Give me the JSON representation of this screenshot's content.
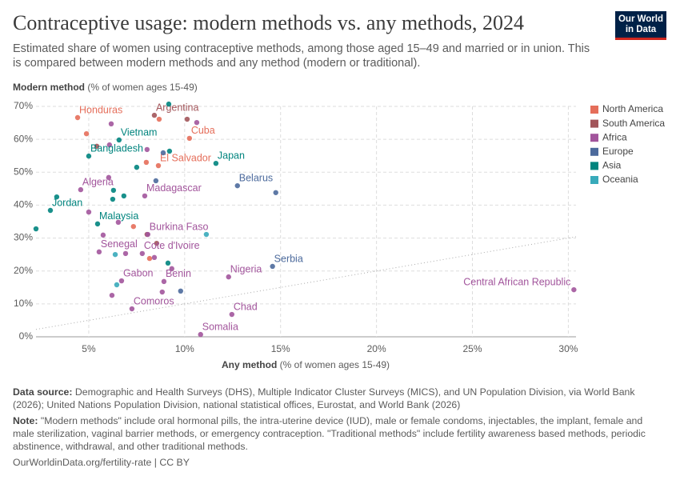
{
  "header": {
    "title": "Contraceptive usage: modern methods vs. any methods, 2024",
    "subtitle": "Estimated share of women using contraceptive methods, among those aged 15–49 and married or in union. This is compared between modern methods and any method (modern or traditional).",
    "logo": "Our World in Data"
  },
  "chart_data": {
    "type": "scatter",
    "ylabel": "Modern method",
    "ylabel_unit": "(% of women ages 15-49)",
    "xlabel": "Any method",
    "xlabel_unit": "(% of women ages 15-49)",
    "xlim": [
      2.25,
      30.4
    ],
    "ylim": [
      0,
      70
    ],
    "xticks": [
      {
        "value": 5,
        "label": "5%"
      },
      {
        "value": 10,
        "label": "10%"
      },
      {
        "value": 15,
        "label": "15%"
      },
      {
        "value": 20,
        "label": "20%"
      },
      {
        "value": 25,
        "label": "25%"
      },
      {
        "value": 30,
        "label": "30%"
      }
    ],
    "yticks": [
      {
        "value": 0,
        "label": "0%"
      },
      {
        "value": 10,
        "label": "10%"
      },
      {
        "value": 20,
        "label": "20%"
      },
      {
        "value": 30,
        "label": "30%"
      },
      {
        "value": 40,
        "label": "40%"
      },
      {
        "value": 50,
        "label": "50%"
      },
      {
        "value": 60,
        "label": "60%"
      },
      {
        "value": 70,
        "label": "70%"
      }
    ],
    "grid": true,
    "legend": "right",
    "series": [
      {
        "name": "North America",
        "color": "#e56e5a",
        "x": [
          4.42,
          10.25,
          8.63,
          8.0,
          7.33,
          8.17,
          4.88,
          8.67
        ],
        "values": [
          66.6,
          60.3,
          52.0,
          53.0,
          33.5,
          23.8,
          61.7,
          66.1
        ],
        "labels": [
          "Honduras",
          "Cuba",
          "El Salvador",
          null,
          null,
          null,
          null,
          null
        ]
      },
      {
        "name": "South America",
        "color": "#a2555a",
        "x": [
          8.42,
          10.13,
          5.42,
          8.54,
          8.04
        ],
        "values": [
          67.3,
          66.1,
          57.9,
          28.4,
          31.1
        ],
        "labels": [
          "Argentina",
          null,
          null,
          null,
          null
        ]
      },
      {
        "name": "Africa",
        "color": "#a2559c",
        "x": [
          4.58,
          7.92,
          8.08,
          7.79,
          12.29,
          12.46,
          10.83,
          30.29,
          6.71,
          8.92,
          7.25,
          5.54,
          6.17,
          10.63,
          6.08,
          8.04,
          6.04,
          5.0,
          5.75,
          6.54,
          6.92,
          8.42,
          8.83,
          6.21,
          9.33
        ],
        "values": [
          44.7,
          42.8,
          31.1,
          25.3,
          18.2,
          6.8,
          0.7,
          14.3,
          17.0,
          16.8,
          8.5,
          25.8,
          64.7,
          65.1,
          58.3,
          56.9,
          48.4,
          37.9,
          30.9,
          34.8,
          25.3,
          24.1,
          13.6,
          12.6,
          20.7
        ],
        "labels": [
          "Algeria",
          "Madagascar",
          "Burkina Faso",
          "Cote d'Ivoire",
          "Nigeria",
          "Chad",
          "Somalia",
          "Central African Republic",
          "Gabon",
          "Benin",
          "Comoros",
          "Senegal",
          null,
          null,
          null,
          null,
          null,
          null,
          null,
          null,
          null,
          null,
          null,
          null,
          null
        ]
      },
      {
        "name": "Europe",
        "color": "#4c6a9c",
        "x": [
          12.75,
          14.58,
          14.75,
          8.5,
          9.79,
          8.88
        ],
        "values": [
          45.9,
          21.4,
          43.8,
          47.4,
          13.9,
          55.9
        ],
        "labels": [
          "Belarus",
          "Serbia",
          null,
          null,
          null,
          null
        ]
      },
      {
        "name": "Asia",
        "color": "#00847e",
        "x": [
          6.58,
          5.0,
          11.63,
          3.0,
          5.46,
          9.17,
          9.21,
          7.5,
          3.33,
          6.29,
          6.83,
          6.25,
          2.25,
          9.13
        ],
        "values": [
          59.8,
          54.9,
          52.7,
          38.4,
          34.3,
          70.7,
          56.4,
          51.5,
          42.5,
          44.5,
          42.8,
          41.8,
          32.8,
          22.4
        ],
        "labels": [
          "Vietnam",
          "Bangladesh",
          "Japan",
          "Jordan",
          "Malaysia",
          null,
          null,
          null,
          null,
          null,
          null,
          null,
          null,
          null
        ]
      },
      {
        "name": "Oceania",
        "color": "#38aaba",
        "x": [
          11.13,
          6.38,
          6.46
        ],
        "values": [
          31.1,
          25.0,
          15.8
        ],
        "labels": [
          null,
          null,
          null
        ]
      }
    ]
  },
  "footer": {
    "source_key": "Data source:",
    "source": "Demographic and Health Surveys (DHS), Multiple Indicator Cluster Surveys (MICS), and UN Population Division, via World Bank (2026); United Nations Population Division, national statistical offices, Eurostat, and World Bank (2026)",
    "note_key": "Note:",
    "note": "\"Modern methods\" include oral hormonal pills, the intra-uterine device (IUD), male or female condoms, injectables, the implant, female and male sterilization, vaginal barrier methods, or emergency contraception. \"Traditional methods\" include fertility awareness based methods, periodic abstinence, withdrawal, and other traditional methods.",
    "url": "OurWorldinData.org/fertility-rate | CC BY"
  }
}
